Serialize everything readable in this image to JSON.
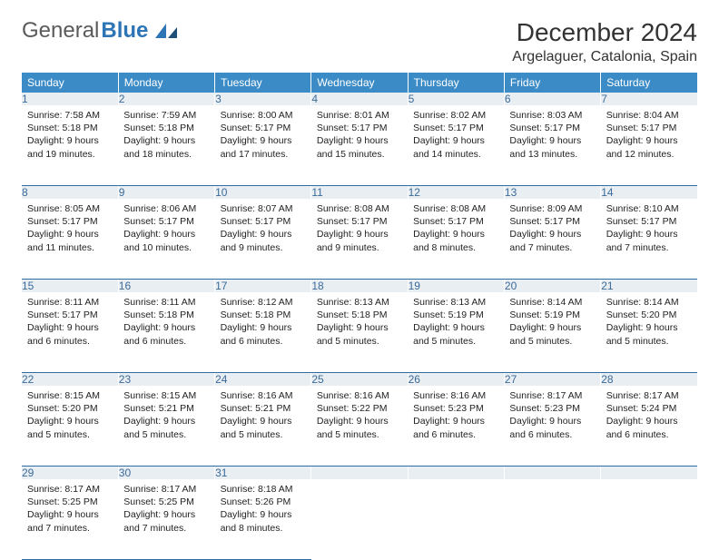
{
  "brand": {
    "part1": "General",
    "part2": "Blue"
  },
  "title": "December 2024",
  "location": "Argelaguer, Catalonia, Spain",
  "colors": {
    "header_bg": "#3b8bc6",
    "daynum_bg": "#e9eef3",
    "daynum_fg": "#3b6b99",
    "rule": "#2e6ca4",
    "brand_blue": "#2e75b6"
  },
  "weekdays": [
    "Sunday",
    "Monday",
    "Tuesday",
    "Wednesday",
    "Thursday",
    "Friday",
    "Saturday"
  ],
  "weeks": [
    {
      "nums": [
        "1",
        "2",
        "3",
        "4",
        "5",
        "6",
        "7"
      ],
      "cells": [
        {
          "sunrise": "7:58 AM",
          "sunset": "5:18 PM",
          "daylight": "9 hours and 19 minutes."
        },
        {
          "sunrise": "7:59 AM",
          "sunset": "5:18 PM",
          "daylight": "9 hours and 18 minutes."
        },
        {
          "sunrise": "8:00 AM",
          "sunset": "5:17 PM",
          "daylight": "9 hours and 17 minutes."
        },
        {
          "sunrise": "8:01 AM",
          "sunset": "5:17 PM",
          "daylight": "9 hours and 15 minutes."
        },
        {
          "sunrise": "8:02 AM",
          "sunset": "5:17 PM",
          "daylight": "9 hours and 14 minutes."
        },
        {
          "sunrise": "8:03 AM",
          "sunset": "5:17 PM",
          "daylight": "9 hours and 13 minutes."
        },
        {
          "sunrise": "8:04 AM",
          "sunset": "5:17 PM",
          "daylight": "9 hours and 12 minutes."
        }
      ]
    },
    {
      "nums": [
        "8",
        "9",
        "10",
        "11",
        "12",
        "13",
        "14"
      ],
      "cells": [
        {
          "sunrise": "8:05 AM",
          "sunset": "5:17 PM",
          "daylight": "9 hours and 11 minutes."
        },
        {
          "sunrise": "8:06 AM",
          "sunset": "5:17 PM",
          "daylight": "9 hours and 10 minutes."
        },
        {
          "sunrise": "8:07 AM",
          "sunset": "5:17 PM",
          "daylight": "9 hours and 9 minutes."
        },
        {
          "sunrise": "8:08 AM",
          "sunset": "5:17 PM",
          "daylight": "9 hours and 9 minutes."
        },
        {
          "sunrise": "8:08 AM",
          "sunset": "5:17 PM",
          "daylight": "9 hours and 8 minutes."
        },
        {
          "sunrise": "8:09 AM",
          "sunset": "5:17 PM",
          "daylight": "9 hours and 7 minutes."
        },
        {
          "sunrise": "8:10 AM",
          "sunset": "5:17 PM",
          "daylight": "9 hours and 7 minutes."
        }
      ]
    },
    {
      "nums": [
        "15",
        "16",
        "17",
        "18",
        "19",
        "20",
        "21"
      ],
      "cells": [
        {
          "sunrise": "8:11 AM",
          "sunset": "5:17 PM",
          "daylight": "9 hours and 6 minutes."
        },
        {
          "sunrise": "8:11 AM",
          "sunset": "5:18 PM",
          "daylight": "9 hours and 6 minutes."
        },
        {
          "sunrise": "8:12 AM",
          "sunset": "5:18 PM",
          "daylight": "9 hours and 6 minutes."
        },
        {
          "sunrise": "8:13 AM",
          "sunset": "5:18 PM",
          "daylight": "9 hours and 5 minutes."
        },
        {
          "sunrise": "8:13 AM",
          "sunset": "5:19 PM",
          "daylight": "9 hours and 5 minutes."
        },
        {
          "sunrise": "8:14 AM",
          "sunset": "5:19 PM",
          "daylight": "9 hours and 5 minutes."
        },
        {
          "sunrise": "8:14 AM",
          "sunset": "5:20 PM",
          "daylight": "9 hours and 5 minutes."
        }
      ]
    },
    {
      "nums": [
        "22",
        "23",
        "24",
        "25",
        "26",
        "27",
        "28"
      ],
      "cells": [
        {
          "sunrise": "8:15 AM",
          "sunset": "5:20 PM",
          "daylight": "9 hours and 5 minutes."
        },
        {
          "sunrise": "8:15 AM",
          "sunset": "5:21 PM",
          "daylight": "9 hours and 5 minutes."
        },
        {
          "sunrise": "8:16 AM",
          "sunset": "5:21 PM",
          "daylight": "9 hours and 5 minutes."
        },
        {
          "sunrise": "8:16 AM",
          "sunset": "5:22 PM",
          "daylight": "9 hours and 5 minutes."
        },
        {
          "sunrise": "8:16 AM",
          "sunset": "5:23 PM",
          "daylight": "9 hours and 6 minutes."
        },
        {
          "sunrise": "8:17 AM",
          "sunset": "5:23 PM",
          "daylight": "9 hours and 6 minutes."
        },
        {
          "sunrise": "8:17 AM",
          "sunset": "5:24 PM",
          "daylight": "9 hours and 6 minutes."
        }
      ]
    },
    {
      "nums": [
        "29",
        "30",
        "31",
        "",
        "",
        "",
        ""
      ],
      "cells": [
        {
          "sunrise": "8:17 AM",
          "sunset": "5:25 PM",
          "daylight": "9 hours and 7 minutes."
        },
        {
          "sunrise": "8:17 AM",
          "sunset": "5:25 PM",
          "daylight": "9 hours and 7 minutes."
        },
        {
          "sunrise": "8:18 AM",
          "sunset": "5:26 PM",
          "daylight": "9 hours and 8 minutes."
        },
        null,
        null,
        null,
        null
      ]
    }
  ]
}
